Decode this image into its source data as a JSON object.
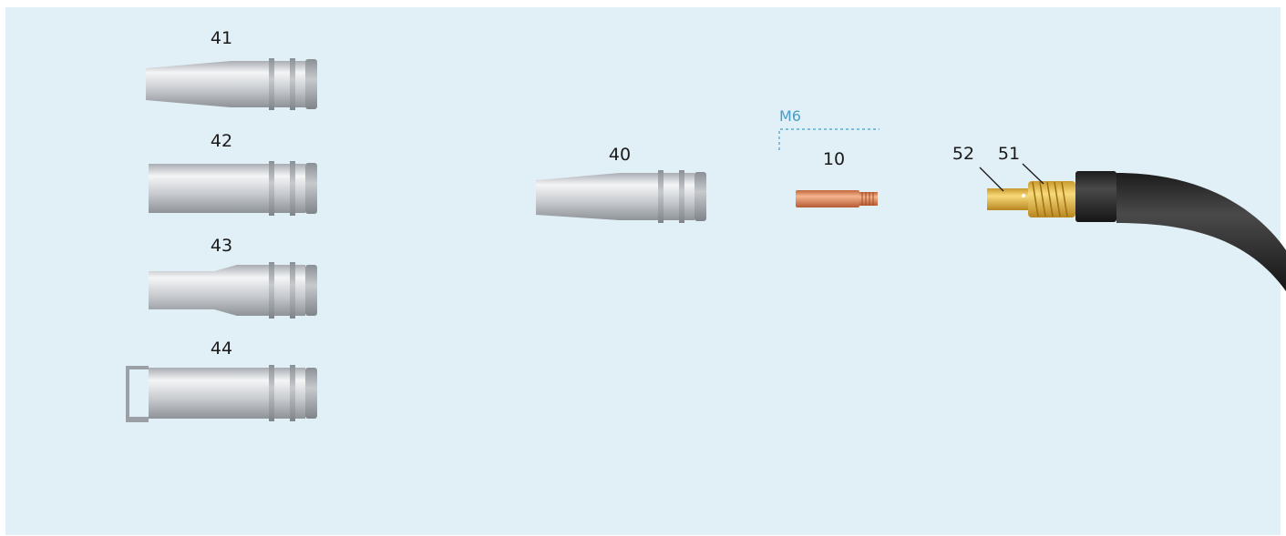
{
  "parts": [
    {
      "label": "41"
    },
    {
      "label": "42"
    },
    {
      "label": "43"
    },
    {
      "label": "44"
    },
    {
      "label": "40"
    },
    {
      "label": "10"
    },
    {
      "label": "52"
    },
    {
      "label": "51"
    }
  ],
  "thread": {
    "label": "M6"
  }
}
